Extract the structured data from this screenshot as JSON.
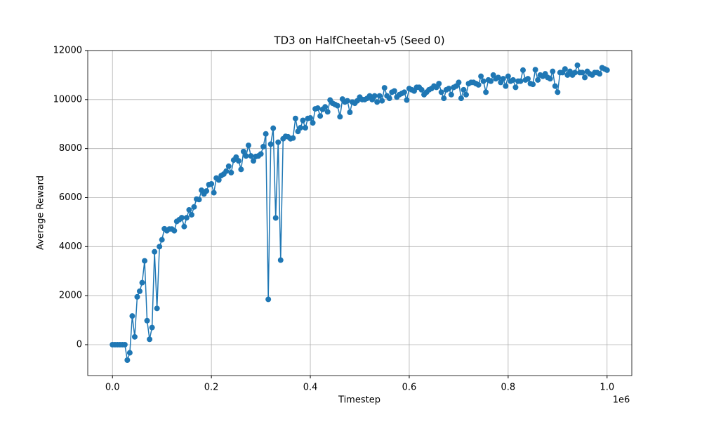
{
  "chart_data": {
    "type": "line",
    "title": "TD3 on HalfCheetah-v5 (Seed 0)",
    "xlabel": "Timestep",
    "ylabel": "Average Reward",
    "x_offset_label": "1e6",
    "xlim": [
      -50000,
      1050000
    ],
    "ylim": [
      -1260,
      12000
    ],
    "xticks": [
      {
        "value": 0,
        "label": "0.0"
      },
      {
        "value": 200000,
        "label": "0.2"
      },
      {
        "value": 400000,
        "label": "0.4"
      },
      {
        "value": 600000,
        "label": "0.6"
      },
      {
        "value": 800000,
        "label": "0.8"
      },
      {
        "value": 1000000,
        "label": "1.0"
      }
    ],
    "yticks": [
      0,
      2000,
      4000,
      6000,
      8000,
      10000,
      12000
    ],
    "grid": true,
    "marker": true,
    "x": [
      0,
      5000,
      10000,
      15000,
      20000,
      25000,
      30000,
      35000,
      40000,
      45000,
      50000,
      55000,
      60000,
      65000,
      70000,
      75000,
      80000,
      85000,
      90000,
      95000,
      100000,
      105000,
      110000,
      115000,
      120000,
      125000,
      130000,
      135000,
      140000,
      145000,
      150000,
      155000,
      160000,
      165000,
      170000,
      175000,
      180000,
      185000,
      190000,
      195000,
      200000,
      205000,
      210000,
      215000,
      220000,
      225000,
      230000,
      235000,
      240000,
      245000,
      250000,
      255000,
      260000,
      265000,
      270000,
      275000,
      280000,
      285000,
      290000,
      295000,
      300000,
      305000,
      310000,
      315000,
      320000,
      325000,
      330000,
      335000,
      340000,
      345000,
      350000,
      355000,
      360000,
      365000,
      370000,
      375000,
      380000,
      385000,
      390000,
      395000,
      400000,
      405000,
      410000,
      415000,
      420000,
      425000,
      430000,
      435000,
      440000,
      445000,
      450000,
      455000,
      460000,
      465000,
      470000,
      475000,
      480000,
      485000,
      490000,
      495000,
      500000,
      505000,
      510000,
      515000,
      520000,
      525000,
      530000,
      535000,
      540000,
      545000,
      550000,
      555000,
      560000,
      565000,
      570000,
      575000,
      580000,
      585000,
      590000,
      595000,
      600000,
      605000,
      610000,
      615000,
      620000,
      625000,
      630000,
      635000,
      640000,
      645000,
      650000,
      655000,
      660000,
      665000,
      670000,
      675000,
      680000,
      685000,
      690000,
      695000,
      700000,
      705000,
      710000,
      715000,
      720000,
      725000,
      730000,
      735000,
      740000,
      745000,
      750000,
      755000,
      760000,
      765000,
      770000,
      775000,
      780000,
      785000,
      790000,
      795000,
      800000,
      805000,
      810000,
      815000,
      820000,
      825000,
      830000,
      835000,
      840000,
      845000,
      850000,
      855000,
      860000,
      865000,
      870000,
      875000,
      880000,
      885000,
      890000,
      895000,
      900000,
      905000,
      910000,
      915000,
      920000,
      925000,
      930000,
      935000,
      940000,
      945000,
      950000,
      955000,
      960000,
      965000,
      970000,
      975000,
      980000,
      985000,
      990000,
      995000,
      1000000
    ],
    "series": [
      {
        "color": "#1f77b4",
        "values": [
          0,
          0,
          0,
          0,
          0,
          0,
          -630,
          -330,
          1170,
          320,
          1950,
          2180,
          2530,
          3420,
          980,
          220,
          700,
          3790,
          1480,
          4000,
          4280,
          4730,
          4650,
          4720,
          4720,
          4650,
          5030,
          5100,
          5180,
          4820,
          5180,
          5500,
          5300,
          5620,
          5940,
          5920,
          6300,
          6150,
          6270,
          6530,
          6560,
          6200,
          6800,
          6720,
          6900,
          6960,
          7080,
          7280,
          7020,
          7530,
          7650,
          7500,
          7150,
          7880,
          7700,
          8130,
          7700,
          7500,
          7680,
          7700,
          7780,
          8080,
          8600,
          1850,
          8180,
          8830,
          5170,
          8260,
          3450,
          8400,
          8500,
          8480,
          8400,
          8430,
          9230,
          8700,
          8850,
          9150,
          8850,
          9230,
          9250,
          9050,
          9620,
          9650,
          9330,
          9600,
          9700,
          9500,
          9980,
          9850,
          9800,
          9750,
          9300,
          10020,
          9900,
          9950,
          9480,
          9900,
          9850,
          9950,
          10100,
          10000,
          10000,
          10050,
          10150,
          10000,
          10150,
          9900,
          10150,
          9950,
          10480,
          10150,
          10050,
          10300,
          10350,
          10100,
          10200,
          10250,
          10300,
          9980,
          10450,
          10400,
          10350,
          10500,
          10500,
          10400,
          10200,
          10300,
          10400,
          10450,
          10550,
          10500,
          10650,
          10300,
          10050,
          10400,
          10450,
          10200,
          10500,
          10550,
          10700,
          10050,
          10400,
          10200,
          10650,
          10700,
          10700,
          10650,
          10600,
          10950,
          10750,
          10300,
          10800,
          10750,
          11000,
          10850,
          10900,
          10700,
          10850,
          10550,
          10950,
          10750,
          10800,
          10500,
          10750,
          10750,
          11200,
          10800,
          10850,
          10650,
          10620,
          11220,
          10800,
          11000,
          10950,
          11050,
          10900,
          10850,
          11150,
          10550,
          10300,
          11100,
          11100,
          11250,
          11000,
          11150,
          11000,
          11100,
          11400,
          11100,
          11100,
          10900,
          11150,
          11050,
          11000,
          11100,
          11100,
          11050,
          11300,
          11250,
          11200
        ]
      }
    ]
  }
}
